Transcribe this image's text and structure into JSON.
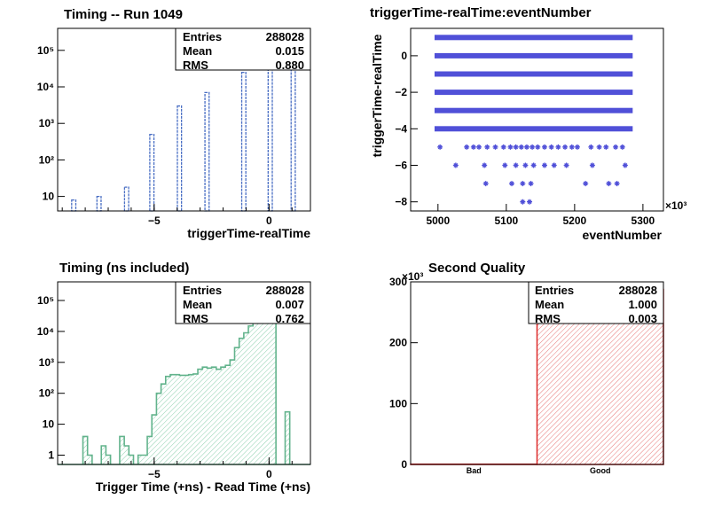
{
  "chart_data": [
    {
      "id": "p1",
      "type": "bar",
      "title": "Timing -- Run 1049",
      "xlabel": "triggerTime-realTime",
      "ylabel": "",
      "log_y": true,
      "xlim": [
        -9.2,
        1.8
      ],
      "ylim": [
        4,
        400000
      ],
      "x_ticks": [
        -5,
        0
      ],
      "y_ticks": [
        {
          "v": 10,
          "label": "10"
        },
        {
          "v": 100,
          "label": "10²"
        },
        {
          "v": 1000,
          "label": "10³"
        },
        {
          "v": 10000,
          "label": "10⁴"
        },
        {
          "v": 100000,
          "label": "10⁵"
        }
      ],
      "bar_color": "#4a6fc4",
      "bin_width": 0.18,
      "bars": [
        {
          "x": -8.5,
          "y": 8
        },
        {
          "x": -7.4,
          "y": 10
        },
        {
          "x": -6.2,
          "y": 18
        },
        {
          "x": -5.1,
          "y": 500
        },
        {
          "x": -3.9,
          "y": 3000
        },
        {
          "x": -2.7,
          "y": 7000
        },
        {
          "x": -1.1,
          "y": 25000
        },
        {
          "x": 0.05,
          "y": 190000
        },
        {
          "x": 1.05,
          "y": 80000
        }
      ],
      "stats": {
        "rows": [
          {
            "label": "Entries",
            "value": "288028"
          },
          {
            "label": "Mean",
            "value": "0.015"
          },
          {
            "label": "RMS",
            "value": "0.880"
          }
        ]
      }
    },
    {
      "id": "p2",
      "type": "scatter",
      "title": "triggerTime-realTime:eventNumber",
      "xlabel": "eventNumber",
      "ylabel": "triggerTime-realTime",
      "xlim": [
        4960,
        5330
      ],
      "ylim": [
        -8.5,
        1.5
      ],
      "x_ticks": [
        5000,
        5100,
        5200,
        5300
      ],
      "y_ticks": [
        -8,
        -6,
        -4,
        -2,
        0
      ],
      "x_exponent": "×10³",
      "marker_color": "#5050d8",
      "band_range": [
        4995,
        5285
      ],
      "bands": [
        1,
        0,
        -1,
        -2,
        -3,
        -4
      ],
      "points": [
        {
          "x": 5003,
          "y": -5
        },
        {
          "x": 5042,
          "y": -5
        },
        {
          "x": 5052,
          "y": -5
        },
        {
          "x": 5060,
          "y": -5
        },
        {
          "x": 5072,
          "y": -5
        },
        {
          "x": 5084,
          "y": -5
        },
        {
          "x": 5096,
          "y": -5
        },
        {
          "x": 5106,
          "y": -5
        },
        {
          "x": 5114,
          "y": -5
        },
        {
          "x": 5122,
          "y": -5
        },
        {
          "x": 5130,
          "y": -5
        },
        {
          "x": 5138,
          "y": -5
        },
        {
          "x": 5146,
          "y": -5
        },
        {
          "x": 5156,
          "y": -5
        },
        {
          "x": 5166,
          "y": -5
        },
        {
          "x": 5176,
          "y": -5
        },
        {
          "x": 5186,
          "y": -5
        },
        {
          "x": 5196,
          "y": -5
        },
        {
          "x": 5204,
          "y": -5
        },
        {
          "x": 5224,
          "y": -5
        },
        {
          "x": 5236,
          "y": -5
        },
        {
          "x": 5246,
          "y": -5
        },
        {
          "x": 5260,
          "y": -5
        },
        {
          "x": 5270,
          "y": -5
        },
        {
          "x": 5026,
          "y": -6
        },
        {
          "x": 5068,
          "y": -6
        },
        {
          "x": 5098,
          "y": -6
        },
        {
          "x": 5114,
          "y": -6
        },
        {
          "x": 5128,
          "y": -6
        },
        {
          "x": 5140,
          "y": -6
        },
        {
          "x": 5156,
          "y": -6
        },
        {
          "x": 5170,
          "y": -6
        },
        {
          "x": 5188,
          "y": -6
        },
        {
          "x": 5226,
          "y": -6
        },
        {
          "x": 5274,
          "y": -6
        },
        {
          "x": 5070,
          "y": -7
        },
        {
          "x": 5108,
          "y": -7
        },
        {
          "x": 5124,
          "y": -7
        },
        {
          "x": 5136,
          "y": -7
        },
        {
          "x": 5216,
          "y": -7
        },
        {
          "x": 5250,
          "y": -7
        },
        {
          "x": 5262,
          "y": -7
        },
        {
          "x": 5124,
          "y": -8
        },
        {
          "x": 5134,
          "y": -8
        }
      ]
    },
    {
      "id": "p3",
      "type": "area",
      "title": "Timing (ns included)",
      "xlabel": "Trigger Time (+ns) - Read Time (+ns)",
      "ylabel": "",
      "log_y": true,
      "xlim": [
        -9.2,
        1.8
      ],
      "ylim": [
        0.5,
        400000
      ],
      "x_ticks": [
        -5,
        0
      ],
      "y_ticks": [
        {
          "v": 1,
          "label": "1"
        },
        {
          "v": 10,
          "label": "10"
        },
        {
          "v": 100,
          "label": "10²"
        },
        {
          "v": 1000,
          "label": "10³"
        },
        {
          "v": 10000,
          "label": "10⁴"
        },
        {
          "v": 100000,
          "label": "10⁵"
        }
      ],
      "line_color": "#62b38c",
      "hatch_color": "#8ccfad",
      "x": [
        -9.2,
        -8.1,
        -7.9,
        -7.7,
        -7.5,
        -7.3,
        -7.1,
        -6.9,
        -6.7,
        -6.5,
        -6.3,
        -6.1,
        -5.9,
        -5.7,
        -5.5,
        -5.3,
        -5.1,
        -4.9,
        -4.7,
        -4.5,
        -4.3,
        -4.1,
        -3.9,
        -3.7,
        -3.5,
        -3.3,
        -3.1,
        -2.9,
        -2.7,
        -2.5,
        -2.3,
        -2.1,
        -1.9,
        -1.7,
        -1.5,
        -1.3,
        -1.1,
        -0.9,
        -0.7,
        -0.5,
        -0.3,
        -0.1,
        0.1,
        0.3,
        0.5,
        0.7,
        0.9,
        1.1
      ],
      "values": [
        0.5,
        4,
        1,
        0.5,
        0.5,
        2,
        1,
        0.5,
        0.5,
        4,
        2,
        1,
        0.5,
        1,
        1,
        4,
        20,
        100,
        200,
        350,
        400,
        400,
        380,
        380,
        400,
        420,
        600,
        700,
        650,
        700,
        600,
        700,
        800,
        1200,
        3000,
        6000,
        9000,
        15000,
        30000,
        60000,
        90000,
        100000,
        300000,
        0.5,
        0.5,
        25,
        0.5,
        0.5
      ],
      "stats": {
        "rows": [
          {
            "label": "Entries",
            "value": "288028"
          },
          {
            "label": "Mean",
            "value": "0.007"
          },
          {
            "label": "RMS",
            "value": "0.762"
          }
        ]
      }
    },
    {
      "id": "p4",
      "type": "bar",
      "title": "Second Quality",
      "xlabel": "",
      "ylabel": "",
      "categories": [
        "Bad",
        "Good"
      ],
      "values": [
        0.5,
        287.5
      ],
      "ylim": [
        0,
        300
      ],
      "y_ticks": [
        0,
        100,
        200,
        300
      ],
      "y_exponent": "×10³",
      "line_color": "#dd2a2a",
      "hatch_color": "#e77777",
      "stats": {
        "rows": [
          {
            "label": "Entries",
            "value": "288028"
          },
          {
            "label": "Mean",
            "value": "1.000"
          },
          {
            "label": "RMS",
            "value": "0.003"
          }
        ]
      }
    }
  ]
}
